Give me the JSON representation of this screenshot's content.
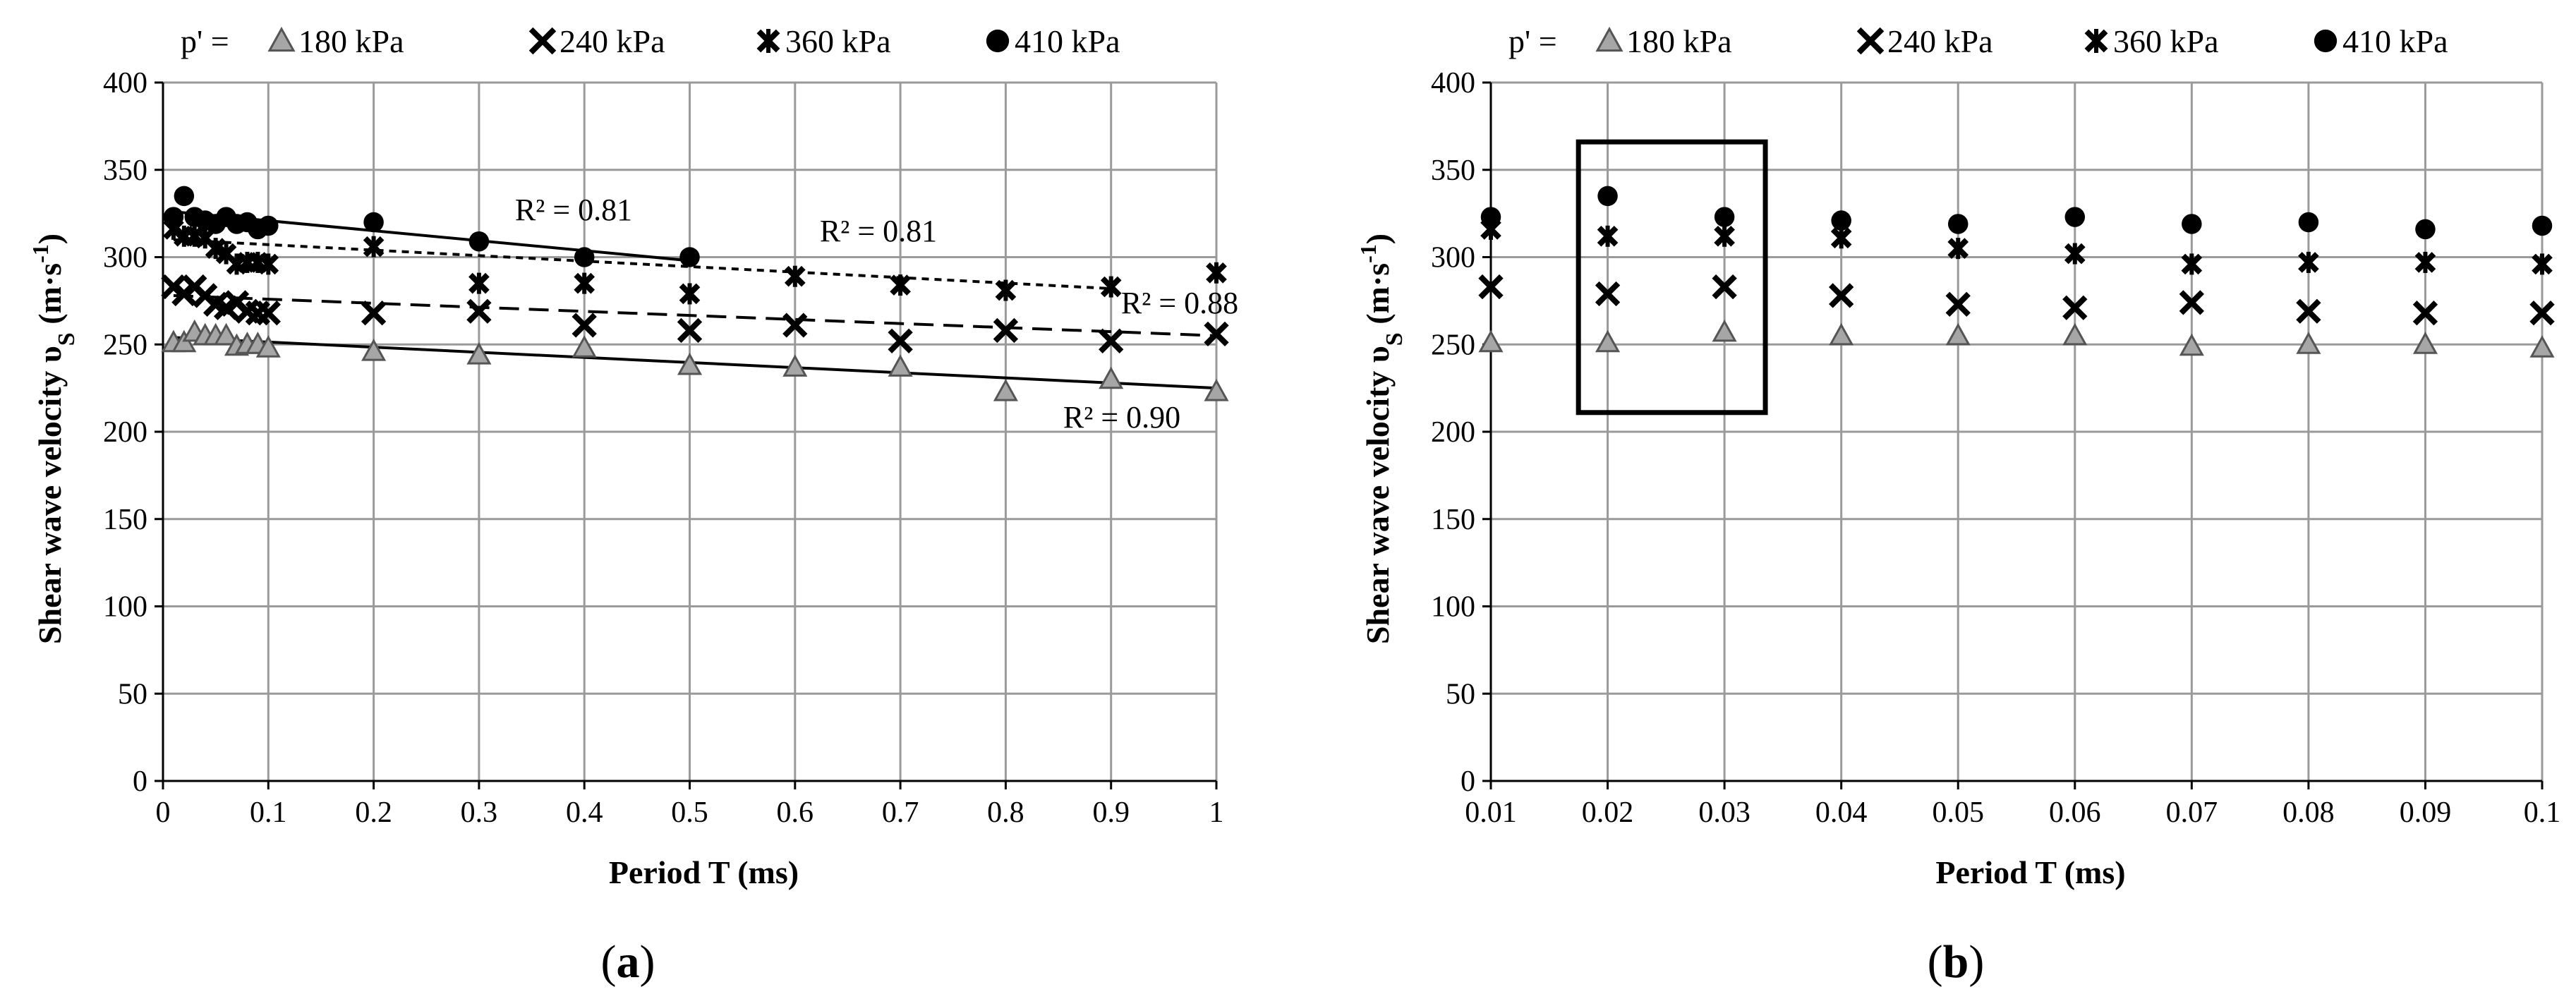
{
  "chart_data": [
    {
      "id": "a",
      "type": "scatter",
      "panel_label": "(a)",
      "legend_prefix": "p' =",
      "xlabel": "Period T (ms)",
      "ylabel": "Shear wave velocity υS (m·s-1)",
      "xlim": [
        0,
        1
      ],
      "ylim": [
        0,
        400
      ],
      "xticks": [
        "0",
        "0.1",
        "0.2",
        "0.3",
        "0.4",
        "0.5",
        "0.6",
        "0.7",
        "0.8",
        "0.9",
        "1"
      ],
      "yticks": [
        "0",
        "50",
        "100",
        "150",
        "200",
        "250",
        "300",
        "350",
        "400"
      ],
      "grid": true,
      "legend_placement": "top",
      "series": [
        {
          "name": "180 kPa",
          "marker": "triangle",
          "color": "#a6a6a6",
          "x": [
            0.01,
            0.02,
            0.03,
            0.04,
            0.05,
            0.06,
            0.07,
            0.08,
            0.09,
            0.1,
            0.2,
            0.3,
            0.4,
            0.5,
            0.6,
            0.7,
            0.8,
            0.9,
            1.0
          ],
          "y": [
            251,
            251,
            257,
            255,
            255,
            255,
            249,
            250,
            250,
            248,
            246,
            244,
            248,
            238,
            237,
            237,
            223,
            230,
            223
          ],
          "trend": {
            "x": [
              0.01,
              1.0
            ],
            "y": [
              254,
              225
            ],
            "style": "solid",
            "r2": "R² = 0.90"
          }
        },
        {
          "name": "240 kPa",
          "marker": "x",
          "color": "#000000",
          "x": [
            0.01,
            0.02,
            0.03,
            0.04,
            0.05,
            0.06,
            0.07,
            0.08,
            0.09,
            0.1,
            0.2,
            0.3,
            0.4,
            0.5,
            0.6,
            0.7,
            0.8,
            0.9,
            1.0
          ],
          "y": [
            283,
            279,
            283,
            278,
            273,
            271,
            274,
            269,
            268,
            268,
            268,
            269,
            261,
            258,
            261,
            252,
            258,
            252,
            256
          ],
          "trend": {
            "x": [
              0.01,
              1.0
            ],
            "y": [
              278,
              255
            ],
            "style": "dash",
            "r2": "R² = 0.88"
          }
        },
        {
          "name": "360 kPa",
          "marker": "star",
          "color": "#000000",
          "x": [
            0.01,
            0.02,
            0.03,
            0.04,
            0.05,
            0.06,
            0.07,
            0.08,
            0.09,
            0.1,
            0.2,
            0.3,
            0.4,
            0.5,
            0.6,
            0.7,
            0.8,
            0.9,
            1.0
          ],
          "y": [
            316,
            312,
            312,
            311,
            305,
            302,
            296,
            297,
            297,
            296,
            306,
            285,
            285,
            279,
            289,
            284,
            281,
            283,
            291
          ],
          "trend": {
            "x": [
              0.01,
              0.9
            ],
            "y": [
              310,
              282
            ],
            "style": "dot",
            "r2": "R² = 0.81"
          }
        },
        {
          "name": "410 kPa",
          "marker": "circle",
          "color": "#000000",
          "x": [
            0.01,
            0.02,
            0.03,
            0.04,
            0.05,
            0.06,
            0.07,
            0.08,
            0.09,
            0.1,
            0.2,
            0.3,
            0.4,
            0.5
          ],
          "y": [
            323,
            335,
            323,
            321,
            319,
            323,
            319,
            320,
            316,
            318,
            320,
            309,
            300,
            300
          ],
          "trend": {
            "x": [
              0.01,
              0.5
            ],
            "y": [
              326,
              298
            ],
            "style": "solid",
            "r2": "R² = 0.81"
          }
        }
      ]
    },
    {
      "id": "b",
      "type": "scatter",
      "panel_label": "(b)",
      "legend_prefix": "p' =",
      "xlabel": "Period T (ms)",
      "ylabel": "Shear wave velocity υS (m·s-1)",
      "xlim": [
        0.01,
        0.1
      ],
      "ylim": [
        0,
        400
      ],
      "xticks": [
        "0.01",
        "0.02",
        "0.03",
        "0.04",
        "0.05",
        "0.06",
        "0.07",
        "0.08",
        "0.09",
        "0.1"
      ],
      "yticks": [
        "0",
        "50",
        "100",
        "150",
        "200",
        "250",
        "300",
        "350",
        "400"
      ],
      "grid": true,
      "legend_placement": "top",
      "highlight_box": {
        "x": [
          0.0175,
          0.0335
        ],
        "y": [
          211,
          366
        ]
      },
      "series": [
        {
          "name": "180 kPa",
          "marker": "triangle",
          "color": "#a6a6a6",
          "x": [
            0.01,
            0.02,
            0.03,
            0.04,
            0.05,
            0.06,
            0.07,
            0.08,
            0.09,
            0.1
          ],
          "y": [
            251,
            251,
            257,
            255,
            255,
            255,
            249,
            250,
            250,
            248
          ]
        },
        {
          "name": "240 kPa",
          "marker": "x",
          "color": "#000000",
          "x": [
            0.01,
            0.02,
            0.03,
            0.04,
            0.05,
            0.06,
            0.07,
            0.08,
            0.09,
            0.1
          ],
          "y": [
            283,
            279,
            283,
            278,
            273,
            271,
            274,
            269,
            268,
            268
          ]
        },
        {
          "name": "360 kPa",
          "marker": "star",
          "color": "#000000",
          "x": [
            0.01,
            0.02,
            0.03,
            0.04,
            0.05,
            0.06,
            0.07,
            0.08,
            0.09,
            0.1
          ],
          "y": [
            316,
            312,
            312,
            311,
            305,
            302,
            296,
            297,
            297,
            296
          ]
        },
        {
          "name": "410 kPa",
          "marker": "circle",
          "color": "#000000",
          "x": [
            0.01,
            0.02,
            0.03,
            0.04,
            0.05,
            0.06,
            0.07,
            0.08,
            0.09,
            0.1
          ],
          "y": [
            323,
            335,
            323,
            321,
            319,
            323,
            319,
            320,
            316,
            318
          ]
        }
      ]
    }
  ]
}
